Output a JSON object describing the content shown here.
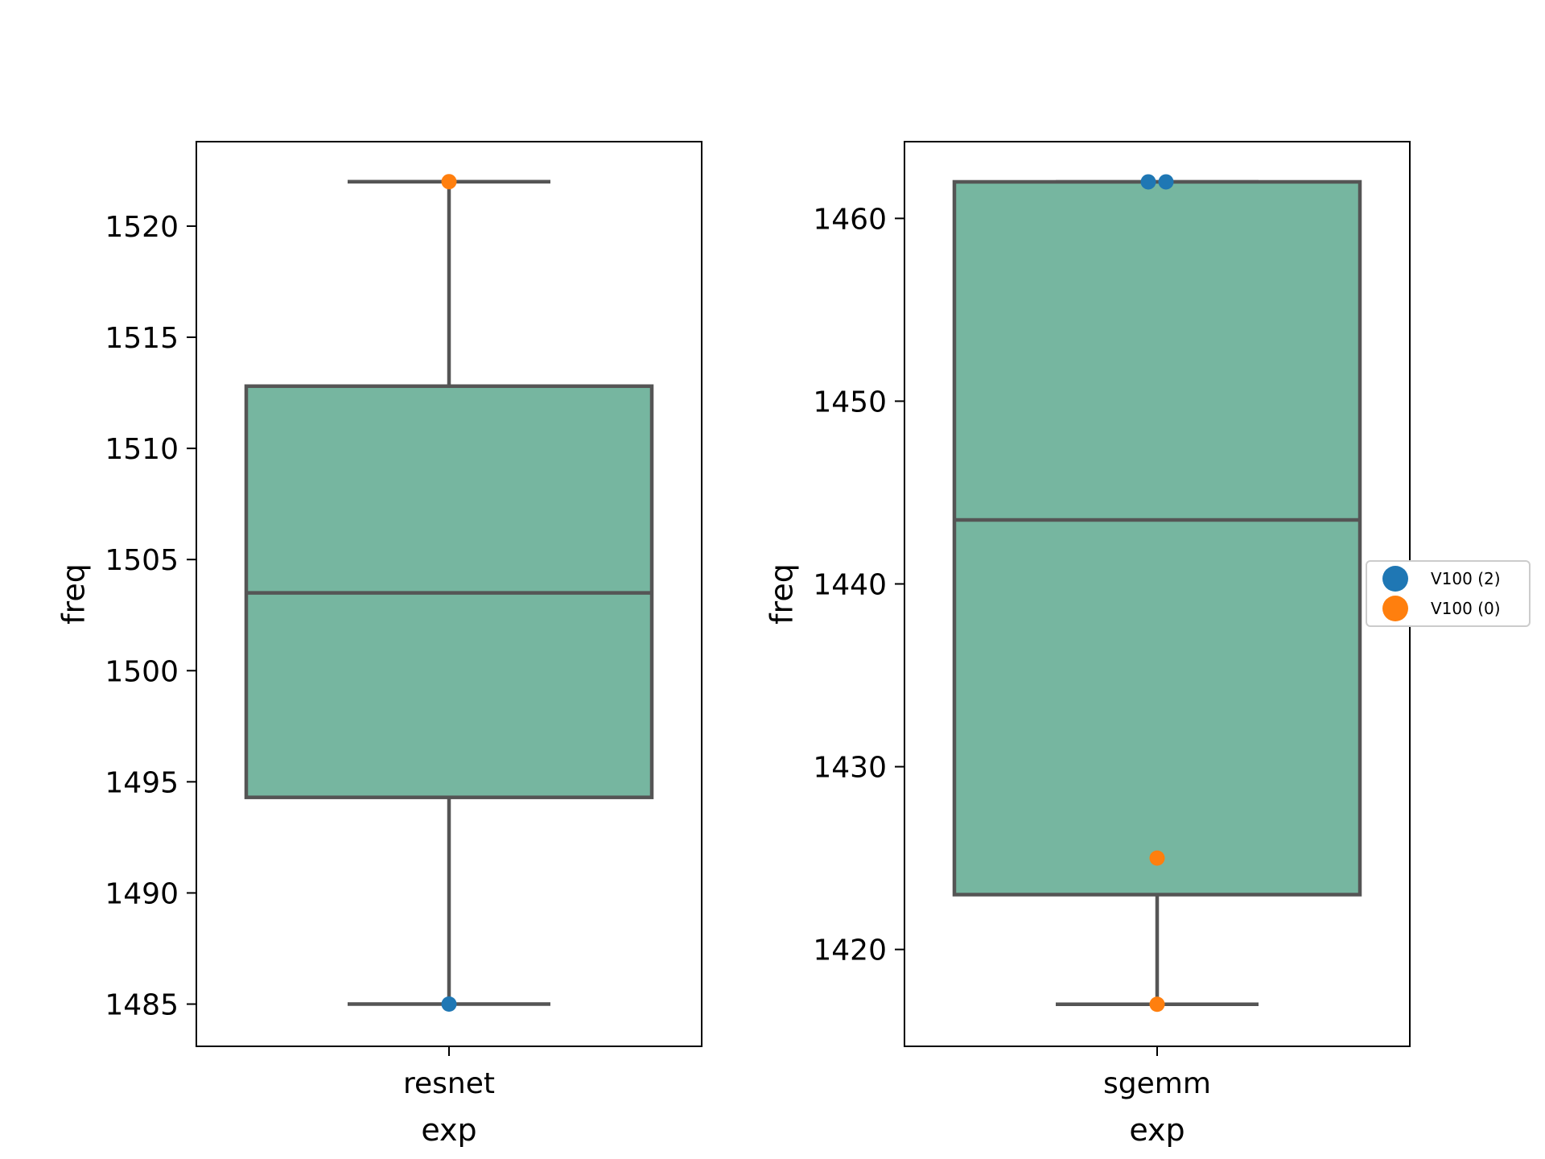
{
  "chart_data": [
    {
      "type": "box",
      "category": "resnet",
      "xlabel": "exp",
      "ylabel": "freq",
      "ylim": [
        1483.1,
        1523.8
      ],
      "yticks": [
        1485,
        1490,
        1495,
        1500,
        1505,
        1510,
        1515,
        1520
      ],
      "box": {
        "whisker_low": 1485,
        "q1": 1494.3,
        "median": 1503.5,
        "q3": 1512.8,
        "whisker_high": 1522
      },
      "points": [
        {
          "series": "V100 (0)",
          "y": 1522
        },
        {
          "series": "V100 (2)",
          "y": 1485
        }
      ]
    },
    {
      "type": "box",
      "category": "sgemm",
      "xlabel": "exp",
      "ylabel": "freq",
      "ylim": [
        1414.7,
        1464.2
      ],
      "yticks": [
        1420,
        1430,
        1440,
        1450,
        1460
      ],
      "box": {
        "whisker_low": 1417,
        "q1": 1423,
        "median": 1443.5,
        "q3": 1462,
        "whisker_high": 1462
      },
      "points": [
        {
          "series": "V100 (2)",
          "y": 1462
        },
        {
          "series": "V100 (2)",
          "y": 1462
        },
        {
          "series": "V100 (0)",
          "y": 1425
        },
        {
          "series": "V100 (0)",
          "y": 1417
        }
      ]
    }
  ],
  "legend": {
    "placement": "right",
    "items": [
      {
        "label": "V100 (2)",
        "color": "#1f77b4"
      },
      {
        "label": "V100 (0)",
        "color": "#ff7f0e"
      }
    ]
  },
  "colors": {
    "box_fill": "#76b6a0",
    "box_line": "#555555",
    "axes": "#000000"
  }
}
